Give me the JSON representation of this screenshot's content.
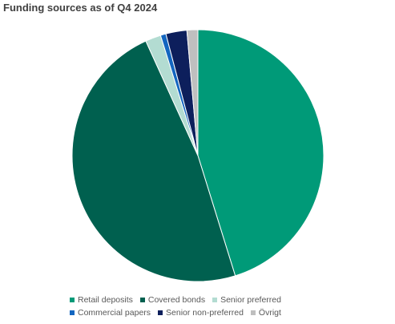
{
  "chart_data": {
    "type": "pie",
    "title": "Funding sources as of Q4 2024",
    "categories": [
      "Retail deposits",
      "Covered bonds",
      "Senior preferred",
      "Commercial papers",
      "Senior non-preferred",
      "Övrigt"
    ],
    "values": [
      45.2,
      48.0,
      2.0,
      0.7,
      2.7,
      1.4
    ],
    "unit": "%",
    "colors": [
      "#009a78",
      "#00604f",
      "#b3dcd2",
      "#1366c0",
      "#0d1f5c",
      "#bfbfbf"
    ],
    "legend_position": "bottom",
    "start_angle_deg": 0,
    "direction": "clockwise"
  }
}
